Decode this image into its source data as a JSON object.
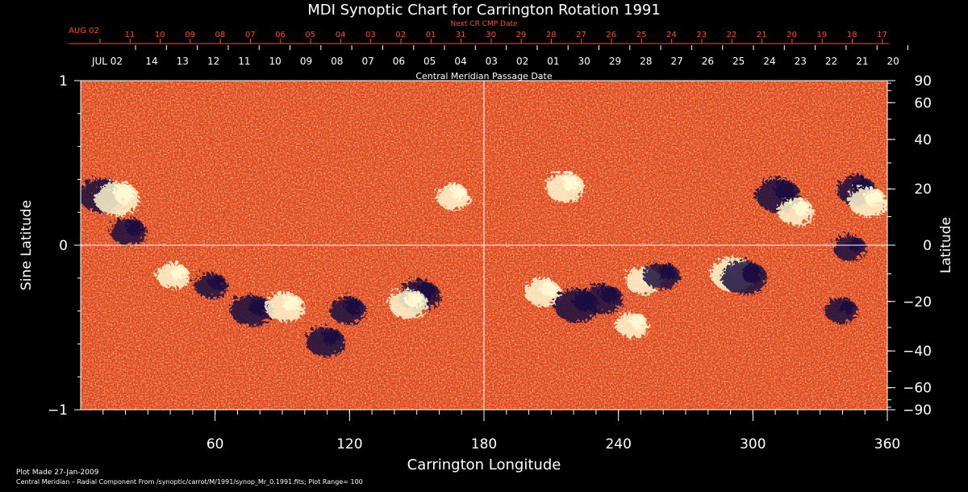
{
  "chart_data": {
    "type": "heatmap",
    "title": "MDI Synoptic Chart for Carrington Rotation 1991",
    "xlabel": "Carrington Longitude",
    "ylabel_left": "Sine Latitude",
    "ylabel_right": "Latitude",
    "xlim": [
      0,
      360
    ],
    "ylim": [
      -1,
      1
    ],
    "x_ticks": [
      60,
      120,
      180,
      240,
      300,
      360
    ],
    "y_ticks_left": [
      1,
      0,
      -1
    ],
    "y_tick_labels_left": [
      "1",
      "0",
      "−1"
    ],
    "y_ticks_right_deg": [
      90,
      60,
      40,
      20,
      0,
      -20,
      -40,
      -60,
      -90
    ],
    "y_tick_labels_right": [
      "90",
      "60",
      "40",
      "20",
      "0",
      "−20",
      "−40",
      "−60",
      "−90"
    ],
    "grid_lines": {
      "x": [
        180
      ],
      "y": [
        0
      ]
    },
    "top_axis_orange": {
      "label": "Next CR CMP Date",
      "first_label": "AUG 02",
      "labels": [
        "11",
        "10",
        "09",
        "08",
        "07",
        "06",
        "05",
        "04",
        "03",
        "02",
        "01",
        "31",
        "30",
        "29",
        "28",
        "27",
        "26",
        "25",
        "24",
        "23",
        "22",
        "21",
        "20",
        "19",
        "18",
        "17"
      ]
    },
    "top_axis_white": {
      "label": "Central Meridian Passage Date",
      "first_label": "JUL 02",
      "labels": [
        "14",
        "13",
        "12",
        "11",
        "10",
        "09",
        "08",
        "07",
        "06",
        "05",
        "04",
        "03",
        "02",
        "01",
        "30",
        "29",
        "28",
        "27",
        "26",
        "25",
        "24",
        "23",
        "22",
        "21",
        "20"
      ]
    },
    "field_range": [
      -100,
      100
    ],
    "colors": {
      "background": "#000000",
      "axis_orange": "#ff4d1a",
      "field_base": "#e8400f",
      "positive": "#fff8d0",
      "negative": "#1a1040"
    },
    "active_regions": [
      {
        "lon": 8,
        "sinlat": 0.32,
        "polarity": "negative",
        "strength": 1.0
      },
      {
        "lon": 15,
        "sinlat": 0.3,
        "polarity": "positive",
        "strength": 1.0
      },
      {
        "lon": 20,
        "sinlat": 0.1,
        "polarity": "negative",
        "strength": 0.7
      },
      {
        "lon": 40,
        "sinlat": -0.17,
        "polarity": "positive",
        "strength": 0.6
      },
      {
        "lon": 57,
        "sinlat": -0.23,
        "polarity": "negative",
        "strength": 0.6
      },
      {
        "lon": 75,
        "sinlat": -0.38,
        "polarity": "negative",
        "strength": 0.9
      },
      {
        "lon": 90,
        "sinlat": -0.36,
        "polarity": "positive",
        "strength": 0.8
      },
      {
        "lon": 108,
        "sinlat": -0.57,
        "polarity": "negative",
        "strength": 0.8
      },
      {
        "lon": 118,
        "sinlat": -0.38,
        "polarity": "negative",
        "strength": 0.7
      },
      {
        "lon": 150,
        "sinlat": -0.29,
        "polarity": "negative",
        "strength": 0.9
      },
      {
        "lon": 145,
        "sinlat": -0.34,
        "polarity": "positive",
        "strength": 0.8
      },
      {
        "lon": 165,
        "sinlat": 0.31,
        "polarity": "positive",
        "strength": 0.6
      },
      {
        "lon": 205,
        "sinlat": -0.27,
        "polarity": "positive",
        "strength": 0.7
      },
      {
        "lon": 220,
        "sinlat": -0.35,
        "polarity": "negative",
        "strength": 1.0
      },
      {
        "lon": 232,
        "sinlat": -0.31,
        "polarity": "negative",
        "strength": 0.8
      },
      {
        "lon": 215,
        "sinlat": 0.37,
        "polarity": "positive",
        "strength": 0.8
      },
      {
        "lon": 245,
        "sinlat": -0.47,
        "polarity": "positive",
        "strength": 0.6
      },
      {
        "lon": 250,
        "sinlat": -0.2,
        "polarity": "positive",
        "strength": 0.7
      },
      {
        "lon": 258,
        "sinlat": -0.17,
        "polarity": "negative",
        "strength": 0.7
      },
      {
        "lon": 290,
        "sinlat": -0.16,
        "polarity": "positive",
        "strength": 1.0
      },
      {
        "lon": 295,
        "sinlat": -0.18,
        "polarity": "negative",
        "strength": 1.0
      },
      {
        "lon": 310,
        "sinlat": 0.32,
        "polarity": "negative",
        "strength": 1.0
      },
      {
        "lon": 318,
        "sinlat": 0.22,
        "polarity": "positive",
        "strength": 0.7
      },
      {
        "lon": 345,
        "sinlat": 0.35,
        "polarity": "negative",
        "strength": 0.8
      },
      {
        "lon": 350,
        "sinlat": 0.28,
        "polarity": "positive",
        "strength": 0.8
      },
      {
        "lon": 342,
        "sinlat": 0.0,
        "polarity": "negative",
        "strength": 0.6
      },
      {
        "lon": 338,
        "sinlat": -0.38,
        "polarity": "negative",
        "strength": 0.6
      }
    ]
  },
  "footer": {
    "plot_made": "Plot Made 27-Jan-2009",
    "description": "Central Meridian – Radial Component From /synoptic/carrot/M/1991/synop_Mr_0.1991.fits; Plot Range=  100"
  }
}
